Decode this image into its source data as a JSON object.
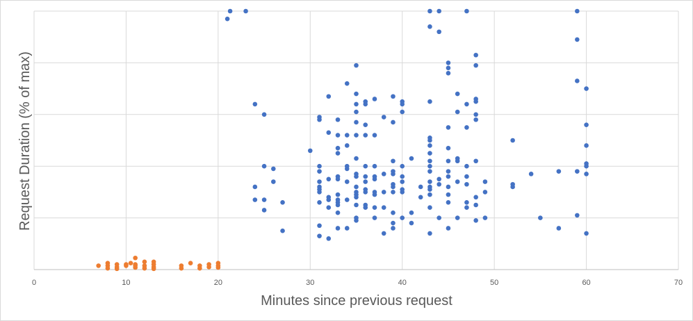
{
  "chart_data": {
    "type": "scatter",
    "title": "",
    "xlabel": "Minutes since previous request",
    "ylabel": "Request Duration (% of max)",
    "xlim": [
      0,
      70
    ],
    "ylim": [
      0,
      100
    ],
    "x_ticks": [
      0,
      10,
      20,
      30,
      40,
      50,
      60,
      70
    ],
    "y_gridlines": [
      0,
      20,
      40,
      60,
      80,
      100
    ],
    "y_tick_labels_shown": false,
    "grid": true,
    "legend": "none",
    "series": [
      {
        "color": "#4472c4",
        "points": [
          [
            21,
            97
          ],
          [
            21.3,
            100
          ],
          [
            23,
            100
          ],
          [
            24,
            64
          ],
          [
            24,
            32
          ],
          [
            24,
            27
          ],
          [
            25,
            60
          ],
          [
            25,
            40
          ],
          [
            25,
            27
          ],
          [
            25,
            23
          ],
          [
            26,
            39
          ],
          [
            26,
            34
          ],
          [
            27,
            26
          ],
          [
            27,
            15
          ],
          [
            30,
            46
          ],
          [
            31,
            59
          ],
          [
            31,
            58
          ],
          [
            31,
            40
          ],
          [
            31,
            38
          ],
          [
            31,
            34
          ],
          [
            31,
            32
          ],
          [
            31,
            31
          ],
          [
            31,
            30
          ],
          [
            31,
            26
          ],
          [
            31,
            17
          ],
          [
            31,
            13
          ],
          [
            32,
            67
          ],
          [
            32,
            53
          ],
          [
            32,
            35
          ],
          [
            32,
            28
          ],
          [
            32,
            27
          ],
          [
            32,
            24
          ],
          [
            32,
            12
          ],
          [
            33,
            58
          ],
          [
            33,
            52
          ],
          [
            33,
            47
          ],
          [
            33,
            45
          ],
          [
            33,
            36
          ],
          [
            33,
            35
          ],
          [
            33,
            29
          ],
          [
            33,
            27
          ],
          [
            33,
            26
          ],
          [
            33,
            25
          ],
          [
            33,
            22
          ],
          [
            33,
            16
          ],
          [
            34,
            72
          ],
          [
            34,
            52
          ],
          [
            34,
            48
          ],
          [
            34,
            40
          ],
          [
            34,
            39
          ],
          [
            34,
            34
          ],
          [
            34,
            27
          ],
          [
            34,
            16
          ],
          [
            35,
            79
          ],
          [
            35,
            68
          ],
          [
            35,
            64
          ],
          [
            35,
            61
          ],
          [
            35,
            57
          ],
          [
            35,
            52
          ],
          [
            35,
            43
          ],
          [
            35,
            37
          ],
          [
            35,
            36
          ],
          [
            35,
            32
          ],
          [
            35,
            30
          ],
          [
            35,
            29
          ],
          [
            35,
            28
          ],
          [
            35,
            25
          ],
          [
            35,
            20
          ],
          [
            35,
            19
          ],
          [
            36,
            65
          ],
          [
            36,
            64
          ],
          [
            36,
            56
          ],
          [
            36,
            52
          ],
          [
            36,
            40
          ],
          [
            36,
            36
          ],
          [
            36,
            34
          ],
          [
            36,
            31
          ],
          [
            36,
            30
          ],
          [
            36,
            25
          ],
          [
            36,
            24
          ],
          [
            37,
            66
          ],
          [
            37,
            52
          ],
          [
            37,
            40
          ],
          [
            37,
            36
          ],
          [
            37,
            35
          ],
          [
            37,
            30
          ],
          [
            37,
            29
          ],
          [
            37,
            24
          ],
          [
            37,
            20
          ],
          [
            38,
            59
          ],
          [
            38,
            37
          ],
          [
            38,
            30
          ],
          [
            38,
            24
          ],
          [
            38,
            14
          ],
          [
            39,
            67
          ],
          [
            39,
            57
          ],
          [
            39,
            42
          ],
          [
            39,
            38
          ],
          [
            39,
            37
          ],
          [
            39,
            33
          ],
          [
            39,
            32
          ],
          [
            39,
            30
          ],
          [
            39,
            22
          ],
          [
            39,
            18
          ],
          [
            39,
            16
          ],
          [
            40,
            65
          ],
          [
            40,
            64
          ],
          [
            40,
            61
          ],
          [
            40,
            40
          ],
          [
            40,
            36
          ],
          [
            40,
            34
          ],
          [
            40,
            31
          ],
          [
            40,
            30
          ],
          [
            40,
            20
          ],
          [
            41,
            43
          ],
          [
            41,
            22
          ],
          [
            41,
            18
          ],
          [
            42,
            32
          ],
          [
            42,
            28
          ],
          [
            43,
            94
          ],
          [
            43,
            100
          ],
          [
            43,
            65
          ],
          [
            43,
            51
          ],
          [
            43,
            50
          ],
          [
            43,
            48
          ],
          [
            43,
            45
          ],
          [
            43,
            42
          ],
          [
            43,
            40
          ],
          [
            43,
            38
          ],
          [
            43,
            34
          ],
          [
            43,
            32
          ],
          [
            43,
            31
          ],
          [
            43,
            29
          ],
          [
            43,
            24
          ],
          [
            43,
            14
          ],
          [
            44,
            100
          ],
          [
            44,
            92
          ],
          [
            44,
            35
          ],
          [
            44,
            33
          ],
          [
            44,
            20
          ],
          [
            45,
            80
          ],
          [
            45,
            78
          ],
          [
            45,
            76
          ],
          [
            45,
            55
          ],
          [
            45,
            47
          ],
          [
            45,
            42
          ],
          [
            45,
            38
          ],
          [
            45,
            36
          ],
          [
            45,
            32
          ],
          [
            45,
            29
          ],
          [
            45,
            26
          ],
          [
            45,
            16
          ],
          [
            46,
            68
          ],
          [
            46,
            61
          ],
          [
            46,
            43
          ],
          [
            46,
            42
          ],
          [
            46,
            34
          ],
          [
            46,
            20
          ],
          [
            47,
            100
          ],
          [
            47,
            64
          ],
          [
            47,
            55
          ],
          [
            47,
            40
          ],
          [
            47,
            36
          ],
          [
            47,
            33
          ],
          [
            47,
            26
          ],
          [
            47,
            24
          ],
          [
            48,
            83
          ],
          [
            48,
            79
          ],
          [
            48,
            66
          ],
          [
            48,
            65
          ],
          [
            48,
            60
          ],
          [
            48,
            58
          ],
          [
            48,
            42
          ],
          [
            48,
            28
          ],
          [
            48,
            25
          ],
          [
            48,
            19
          ],
          [
            49,
            34
          ],
          [
            49,
            30
          ],
          [
            49,
            20
          ],
          [
            52,
            50
          ],
          [
            52,
            33
          ],
          [
            52,
            32
          ],
          [
            54,
            37
          ],
          [
            55,
            20
          ],
          [
            57,
            38
          ],
          [
            57,
            16
          ],
          [
            59,
            100
          ],
          [
            59,
            89
          ],
          [
            59,
            73
          ],
          [
            59,
            38
          ],
          [
            59,
            21
          ],
          [
            60,
            70
          ],
          [
            60,
            56
          ],
          [
            60,
            48
          ],
          [
            60,
            41
          ],
          [
            60,
            40
          ],
          [
            60,
            37
          ],
          [
            60,
            14
          ]
        ]
      },
      {
        "color": "#ed7d31",
        "points": [
          [
            7,
            1.5
          ],
          [
            8,
            2.5
          ],
          [
            8,
            1.5
          ],
          [
            8,
            0.5
          ],
          [
            9,
            2
          ],
          [
            9,
            1
          ],
          [
            9,
            0.3
          ],
          [
            10,
            2
          ],
          [
            10,
            1.5
          ],
          [
            10.5,
            2.5
          ],
          [
            11,
            4.5
          ],
          [
            11,
            2
          ],
          [
            11,
            1.5
          ],
          [
            11,
            0.8
          ],
          [
            12,
            3
          ],
          [
            12,
            1.5
          ],
          [
            12,
            0.5
          ],
          [
            13,
            3
          ],
          [
            13,
            2
          ],
          [
            13,
            1
          ],
          [
            13,
            0.3
          ],
          [
            16,
            1.5
          ],
          [
            16,
            0.5
          ],
          [
            17,
            2.5
          ],
          [
            18,
            1.5
          ],
          [
            18,
            0.5
          ],
          [
            19,
            2
          ],
          [
            19,
            1
          ],
          [
            20,
            2.5
          ],
          [
            20,
            1.5
          ],
          [
            20,
            0.8
          ]
        ]
      }
    ]
  }
}
